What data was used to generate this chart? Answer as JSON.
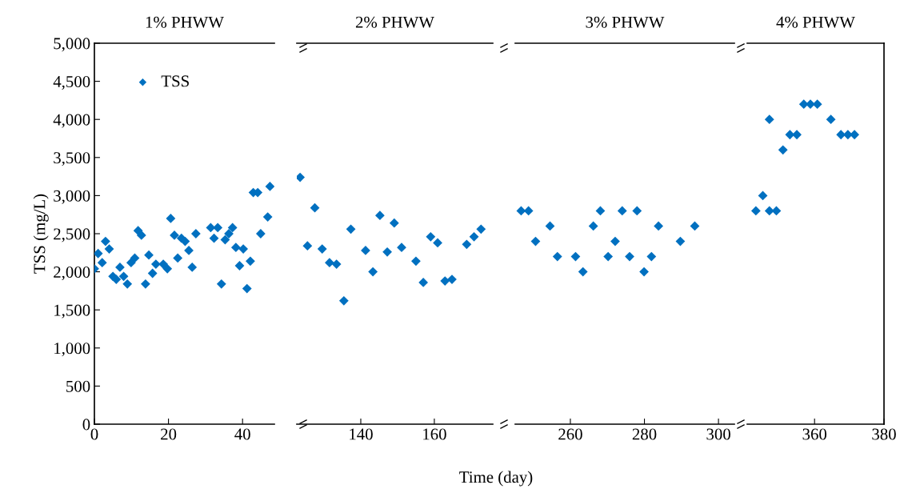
{
  "chart_data": [
    {
      "type": "scatter",
      "title": "1% PHWW",
      "ylabel": "TSS (mg/L)",
      "legend": "top left",
      "marker": "diamond",
      "grid": false,
      "xlim": [
        0,
        48.6
      ],
      "xticks": [
        0,
        20,
        40
      ],
      "ylim": [
        0,
        5000
      ],
      "yticks": [
        {
          "value": 0,
          "label": "0"
        },
        {
          "value": 500,
          "label": "500"
        },
        {
          "value": 1000,
          "label": "1,000"
        },
        {
          "value": 1500,
          "label": "1,500"
        },
        {
          "value": 2000,
          "label": "2,000"
        },
        {
          "value": 2500,
          "label": "2,500"
        },
        {
          "value": 3000,
          "label": "3,000"
        },
        {
          "value": 3500,
          "label": "3,500"
        },
        {
          "value": 4000,
          "label": "4,000"
        },
        {
          "value": 4500,
          "label": "4,500"
        },
        {
          "value": 5000,
          "label": "5,000"
        }
      ],
      "series": [
        {
          "name": "TSS",
          "color": "#0070c0",
          "x": [
            0,
            1,
            2.1,
            3,
            4,
            5,
            5.9,
            6.9,
            7.9,
            8.9,
            9.9,
            10.9,
            11.8,
            12.7,
            13.8,
            14.7,
            15.7,
            16.6,
            18.6,
            19.7,
            20.6,
            21.6,
            22.5,
            23.5,
            24.5,
            25.5,
            26.4,
            27.4,
            31.4,
            32.3,
            33.3,
            34.3,
            35.3,
            36.3,
            37.3,
            38.2,
            39.2,
            40.2,
            41.2,
            42.1,
            42.9,
            44.1,
            44.9,
            46.8,
            47.4
          ],
          "values": [
            2040,
            2240,
            2120,
            2400,
            2300,
            1940,
            1900,
            2060,
            1940,
            1840,
            2120,
            2180,
            2540,
            2480,
            1840,
            2220,
            1980,
            2100,
            2100,
            2040,
            2700,
            2480,
            2180,
            2440,
            2400,
            2280,
            2060,
            2500,
            2580,
            2440,
            2580,
            1840,
            2420,
            2500,
            2580,
            2320,
            2080,
            2300,
            1780,
            2140,
            3040,
            3040,
            2500,
            2720,
            3120
          ]
        }
      ]
    },
    {
      "type": "scatter",
      "title": "2% PHWW",
      "xlabel": "Time (day)",
      "marker": "diamond",
      "grid": false,
      "tick_labels": "x",
      "xlim": [
        122.6,
        175.9
      ],
      "xticks": [
        140,
        160
      ],
      "ylim": [
        0,
        5000
      ],
      "series": [
        {
          "color": "#0070c0",
          "x": [
            123.5,
            125.5,
            127.5,
            129.5,
            131.5,
            133.4,
            135.4,
            137.3,
            141.3,
            143.3,
            145.2,
            147.2,
            149.1,
            151.1,
            155.0,
            157.0,
            159.0,
            160.9,
            162.9,
            164.8,
            168.8,
            170.8,
            172.7
          ],
          "values": [
            3240,
            2340,
            2840,
            2300,
            2120,
            2100,
            1620,
            2560,
            2280,
            2000,
            2740,
            2260,
            2640,
            2320,
            2140,
            1860,
            2460,
            2380,
            1880,
            1900,
            2360,
            2460,
            2560
          ]
        }
      ]
    },
    {
      "type": "scatter",
      "title": "3% PHWW",
      "marker": "diamond",
      "grid": false,
      "tick_labels": "x",
      "xlim": [
        245.1,
        304.3
      ],
      "xticks": [
        260,
        280,
        300
      ],
      "ylim": [
        0,
        5000
      ],
      "series": [
        {
          "color": "#0070c0",
          "x": [
            246.7,
            248.7,
            250.6,
            254.5,
            256.5,
            261.4,
            263.4,
            266.2,
            268.1,
            270.2,
            272.1,
            274.0,
            276.0,
            278.0,
            279.9,
            281.9,
            283.8,
            289.7,
            293.6
          ],
          "values": [
            2800,
            2800,
            2400,
            2600,
            2200,
            2200,
            2000,
            2600,
            2800,
            2200,
            2400,
            2800,
            2200,
            2800,
            2000,
            2200,
            2600,
            2400,
            2600
          ]
        }
      ]
    },
    {
      "type": "scatter",
      "title": "4% PHWW",
      "marker": "diamond",
      "grid": false,
      "tick_labels": "x",
      "xlim": [
        340.6,
        380
      ],
      "xticks": [
        360,
        380
      ],
      "ylim": [
        0,
        5000
      ],
      "series": [
        {
          "color": "#0070c0",
          "x": [
            343.1,
            345.1,
            347.0,
            347.0,
            349.0,
            350.9,
            352.9,
            354.9,
            356.9,
            358.8,
            360.8,
            364.7,
            367.6,
            369.6,
            371.5
          ],
          "values": [
            2800,
            3000,
            4000,
            2800,
            2800,
            3600,
            3800,
            3800,
            4200,
            4200,
            4200,
            4000,
            3800,
            3800,
            3800
          ]
        }
      ]
    }
  ]
}
